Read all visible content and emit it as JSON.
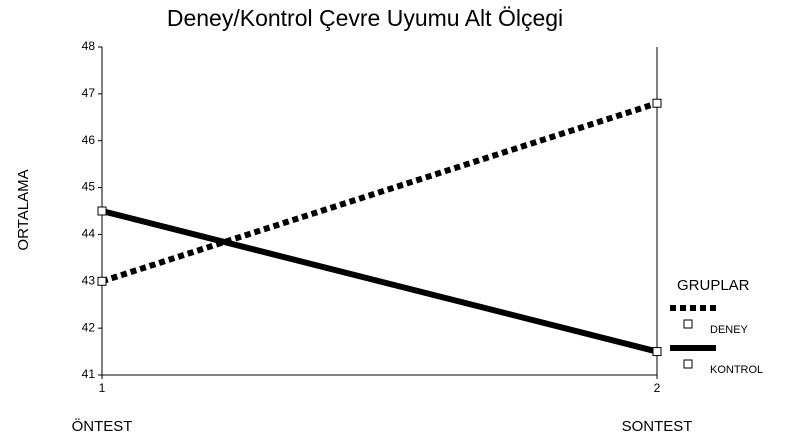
{
  "chart_data": {
    "type": "line",
    "title": "Deney/Kontrol Çevre Uyumu Alt Ölçegi",
    "y_label": "ORTALAMA",
    "x": [
      1,
      2
    ],
    "xlim": [
      1,
      2
    ],
    "xticks": [
      1,
      2
    ],
    "annotations": [
      "ÖNTEST",
      "SONTEST"
    ],
    "ylim": [
      41,
      48
    ],
    "yticks": [
      41,
      42,
      43,
      44,
      45,
      46,
      47,
      48
    ],
    "legend_title": "GRUPLAR",
    "legend": "right",
    "series": [
      {
        "name": "DENEY",
        "color": "#000000",
        "style": "dotted",
        "values": [
          43.0,
          46.8
        ]
      },
      {
        "name": "KONTROL",
        "color": "#000000",
        "style": "solid",
        "values": [
          44.5,
          41.5
        ]
      }
    ]
  }
}
